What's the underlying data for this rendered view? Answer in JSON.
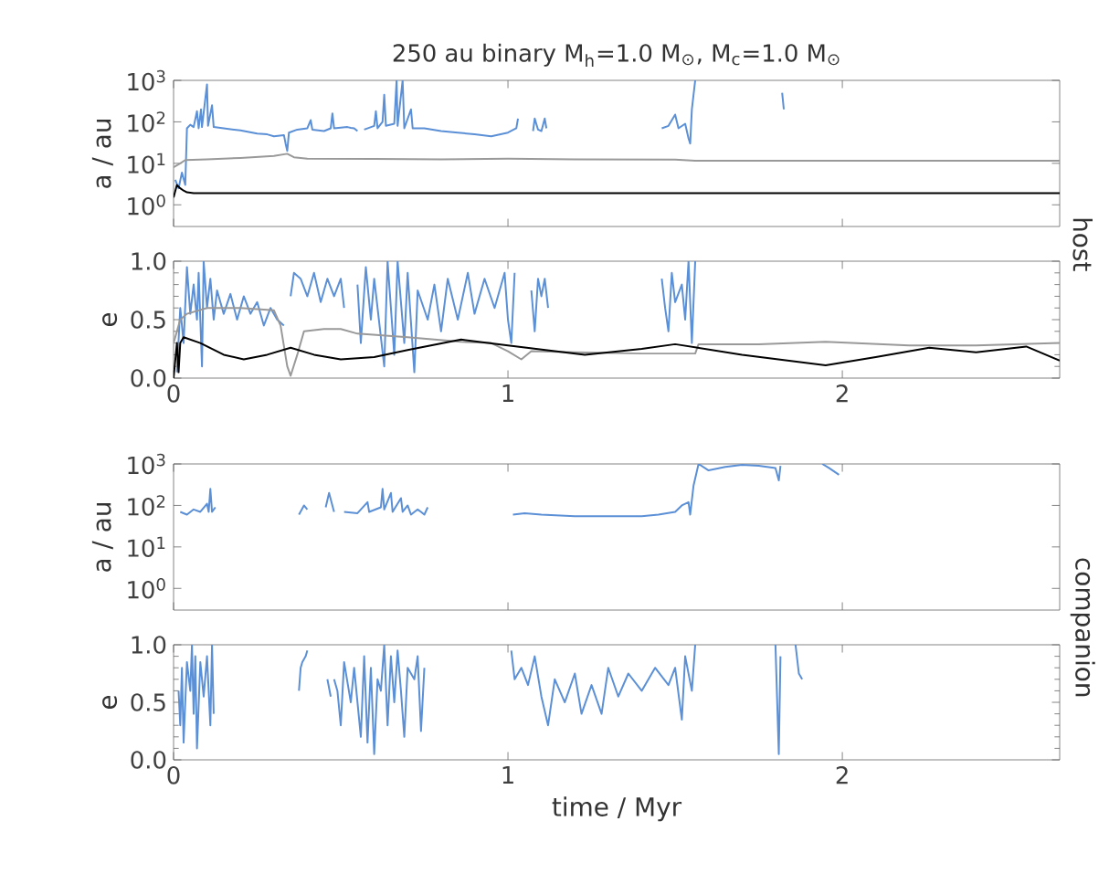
{
  "chart_data": [
    {
      "type": "line",
      "title": "250 au binary  M$_{h}$=1.0 M$_{⊙}$, M$_{c}$=1.0 M$_{⊙}$",
      "ylabel": "a / au",
      "annotations": [
        "host"
      ],
      "log": "y",
      "xlim": [
        0,
        2.65
      ],
      "xticks": [
        0,
        1,
        2
      ],
      "ylim": [
        0.3,
        1000
      ],
      "yticks": [
        {
          "value": 1,
          "label": "10$^{0}$"
        },
        {
          "value": 10,
          "label": "10$^{1}$"
        },
        {
          "value": 100,
          "label": "10$^{2}$"
        },
        {
          "value": 1000,
          "label": "10$^{3}$"
        }
      ],
      "tick_labels": "y",
      "series": [
        {
          "color": "#5b8fd6",
          "x": [
            0.005,
            0.015,
            0.025,
            0.035,
            0.04,
            0.05,
            0.06,
            0.07,
            0.075,
            0.082,
            0.085,
            0.1,
            0.103,
            0.115,
            0.12,
            0.15,
            0.2,
            0.25,
            0.28,
            0.3,
            0.33,
            0.335,
            0.34,
            0.345,
            0.37,
            0.4,
            0.41,
            0.415,
            0.45,
            0.47,
            0.475,
            0.48,
            0.52,
            0.53,
            0.54,
            0.55,
            0.56,
            0.57,
            0.6,
            0.605,
            0.61,
            0.625,
            0.63,
            0.635,
            0.66,
            0.667,
            0.67,
            0.685,
            0.69,
            0.71,
            0.715,
            0.75,
            0.8,
            0.85,
            0.9,
            0.95,
            1.0,
            1.025,
            1.03,
            1.035,
            1.075,
            1.08,
            1.09,
            1.1,
            1.11,
            1.115,
            1.12,
            1.46,
            1.48,
            1.5,
            1.51,
            1.53,
            1.54,
            1.545,
            1.55,
            1.56,
            1.565,
            1.82,
            1.825
          ],
          "values": [
            4,
            2.5,
            6,
            3,
            70,
            85,
            75,
            180,
            70,
            200,
            75,
            800,
            80,
            250,
            75,
            70,
            62,
            52,
            50,
            45,
            48,
            30,
            20,
            55,
            65,
            70,
            110,
            65,
            60,
            70,
            160,
            70,
            75,
            72,
            70,
            60,
            null,
            65,
            80,
            180,
            70,
            100,
            450,
            80,
            90,
            1000,
            80,
            1000,
            70,
            200,
            70,
            70,
            60,
            55,
            50,
            45,
            55,
            70,
            120,
            null,
            60,
            120,
            65,
            60,
            120,
            70,
            null,
            70,
            80,
            150,
            70,
            90,
            40,
            30,
            200,
            1000,
            null,
            500,
            200
          ]
        },
        {
          "color": "#999999",
          "x": [
            0,
            0.02,
            0.035,
            0.1,
            0.2,
            0.3,
            0.34,
            0.36,
            0.4,
            0.6,
            0.8,
            1.0,
            1.2,
            1.5,
            1.56,
            2.0,
            2.65
          ],
          "values": [
            8,
            10,
            12,
            12.5,
            13.5,
            15,
            17,
            14,
            13,
            12.8,
            12.5,
            13,
            12.5,
            12.3,
            11.5,
            11.5,
            11.5
          ]
        },
        {
          "color": "#000000",
          "x": [
            0,
            0.01,
            0.02,
            0.03,
            0.04,
            0.06,
            2.65
          ],
          "values": [
            1.5,
            3,
            2.5,
            2.2,
            2,
            1.9,
            1.9
          ]
        }
      ]
    },
    {
      "type": "line",
      "ylabel": "e",
      "xlim": [
        0,
        2.65
      ],
      "xticks": [
        0,
        1,
        2
      ],
      "ylim": [
        0,
        1
      ],
      "yticks": [
        {
          "value": 0,
          "label": "0.0"
        },
        {
          "value": 0.5,
          "label": "0.5"
        },
        {
          "value": 1,
          "label": "1.0"
        }
      ],
      "series": [
        {
          "color": "#5b8fd6",
          "x": [
            0.01,
            0.02,
            0.03,
            0.04,
            0.05,
            0.06,
            0.07,
            0.075,
            0.085,
            0.09,
            0.1,
            0.11,
            0.12,
            0.13,
            0.15,
            0.17,
            0.19,
            0.21,
            0.23,
            0.25,
            0.27,
            0.29,
            0.31,
            0.33,
            0.335,
            0.35,
            0.36,
            0.38,
            0.4,
            0.42,
            0.44,
            0.46,
            0.48,
            0.5,
            0.51,
            0.52,
            0.55,
            0.56,
            0.575,
            0.59,
            0.6,
            0.63,
            0.64,
            0.66,
            0.67,
            0.69,
            0.7,
            0.72,
            0.73,
            0.76,
            0.78,
            0.8,
            0.82,
            0.85,
            0.88,
            0.9,
            0.93,
            0.96,
            0.99,
            1.0,
            1.01,
            1.02,
            1.03,
            1.07,
            1.08,
            1.09,
            1.1,
            1.11,
            1.12,
            1.125,
            1.46,
            1.47,
            1.48,
            1.49,
            1.5,
            1.52,
            1.53,
            1.54,
            1.55,
            1.56
          ],
          "values": [
            0.05,
            0.6,
            0.3,
            0.95,
            0.55,
            0.8,
            0.5,
            0.9,
            0.1,
            1.0,
            0.6,
            0.85,
            0.5,
            0.75,
            0.55,
            0.72,
            0.5,
            0.7,
            0.55,
            0.65,
            0.45,
            0.6,
            0.5,
            0.45,
            null,
            0.7,
            0.9,
            0.85,
            0.7,
            0.9,
            0.65,
            0.85,
            0.7,
            0.85,
            0.6,
            null,
            0.8,
            0.3,
            0.95,
            0.5,
            0.85,
            0.1,
            1.0,
            0.2,
            1.0,
            0.3,
            0.9,
            0.05,
            0.75,
            0.5,
            0.8,
            0.4,
            0.85,
            0.5,
            0.9,
            0.55,
            0.85,
            0.6,
            0.9,
            0.5,
            0.3,
            0.9,
            null,
            0.75,
            0.4,
            0.85,
            0.7,
            0.85,
            0.6,
            null,
            0.85,
            0.6,
            0.4,
            0.9,
            0.65,
            0.8,
            0.5,
            1.0,
            0.3,
            1.0
          ]
        },
        {
          "color": "#999999",
          "x": [
            0,
            0.02,
            0.04,
            0.1,
            0.2,
            0.3,
            0.32,
            0.34,
            0.35,
            0.37,
            0.39,
            0.45,
            0.5,
            0.55,
            0.7,
            0.86,
            0.95,
            1.0,
            1.04,
            1.07,
            1.2,
            1.4,
            1.56,
            1.57,
            1.75,
            1.95,
            2.2,
            2.4,
            2.65
          ],
          "values": [
            0.3,
            0.5,
            0.55,
            0.6,
            0.6,
            0.58,
            0.45,
            0.1,
            0.02,
            0.2,
            0.4,
            0.42,
            0.42,
            0.38,
            0.35,
            0.31,
            0.3,
            0.23,
            0.16,
            0.23,
            0.22,
            0.21,
            0.21,
            0.29,
            0.29,
            0.31,
            0.28,
            0.28,
            0.3
          ]
        },
        {
          "color": "#000000",
          "x": [
            0,
            0.01,
            0.015,
            0.02,
            0.03,
            0.08,
            0.15,
            0.21,
            0.28,
            0.35,
            0.42,
            0.5,
            0.6,
            0.7,
            0.86,
            1.0,
            1.23,
            1.4,
            1.5,
            1.7,
            1.95,
            2.1,
            2.26,
            2.4,
            2.55,
            2.65
          ],
          "values": [
            0.0,
            0.3,
            0.05,
            0.3,
            0.35,
            0.3,
            0.2,
            0.16,
            0.2,
            0.26,
            0.2,
            0.16,
            0.18,
            0.24,
            0.33,
            0.28,
            0.2,
            0.25,
            0.29,
            0.2,
            0.11,
            0.18,
            0.26,
            0.22,
            0.27,
            0.15
          ]
        }
      ]
    },
    {
      "type": "line",
      "ylabel": "a / au",
      "annotations": [
        "companion"
      ],
      "log": "y",
      "xlim": [
        0,
        2.65
      ],
      "xticks": [
        0,
        1,
        2
      ],
      "ylim": [
        0.3,
        1000
      ],
      "yticks": [
        {
          "value": 1,
          "label": "10$^{0}$"
        },
        {
          "value": 10,
          "label": "10$^{1}$"
        },
        {
          "value": 100,
          "label": "10$^{2}$"
        },
        {
          "value": 1000,
          "label": "10$^{3}$"
        }
      ],
      "tick_labels": "y",
      "series": [
        {
          "color": "#5b8fd6",
          "x": [
            0.02,
            0.04,
            0.06,
            0.08,
            0.1,
            0.105,
            0.11,
            0.115,
            0.125,
            0.13,
            0.375,
            0.39,
            0.4,
            0.405,
            0.455,
            0.465,
            0.48,
            0.485,
            0.51,
            0.55,
            0.58,
            0.585,
            0.62,
            0.625,
            0.63,
            0.65,
            0.655,
            0.68,
            0.685,
            0.7,
            0.71,
            0.73,
            0.74,
            0.75,
            0.76,
            0.765,
            1.015,
            1.05,
            1.1,
            1.2,
            1.3,
            1.4,
            1.45,
            1.5,
            1.52,
            1.54,
            1.545,
            1.555,
            1.57,
            1.6,
            1.65,
            1.7,
            1.75,
            1.8,
            1.81,
            1.815
          ],
          "values": [
            70,
            60,
            80,
            70,
            110,
            70,
            250,
            70,
            90,
            null,
            60,
            100,
            80,
            null,
            90,
            200,
            70,
            null,
            70,
            65,
            120,
            70,
            90,
            250,
            80,
            200,
            70,
            150,
            70,
            100,
            60,
            80,
            70,
            60,
            90,
            null,
            60,
            65,
            60,
            55,
            55,
            55,
            60,
            70,
            100,
            120,
            60,
            300,
            1000,
            700,
            850,
            950,
            900,
            800,
            400,
            900
          ]
        },
        {
          "color": "#5b8fd6",
          "x": [
            1.94,
            1.96,
            1.99
          ],
          "values": [
            1000,
            800,
            550
          ]
        }
      ]
    },
    {
      "type": "line",
      "ylabel": "e",
      "xlabel": "time / Myr",
      "xlim": [
        0,
        2.65
      ],
      "xticks": [
        0,
        1,
        2
      ],
      "ylim": [
        0,
        1
      ],
      "yticks": [
        {
          "value": 0,
          "label": "0.0"
        },
        {
          "value": 0.5,
          "label": "0.5"
        },
        {
          "value": 1,
          "label": "1.0"
        }
      ],
      "series": [
        {
          "color": "#5b8fd6",
          "x": [
            0.015,
            0.02,
            0.025,
            0.03,
            0.04,
            0.05,
            0.055,
            0.06,
            0.065,
            0.07,
            0.08,
            0.09,
            0.1,
            0.11,
            0.115,
            0.12,
            0.125,
            0.375,
            0.38,
            0.385,
            0.395,
            0.4,
            0.405,
            0.46,
            0.47,
            0.475,
            0.48,
            0.49,
            0.5,
            0.51,
            0.53,
            0.54,
            0.56,
            0.57,
            0.58,
            0.59,
            0.6,
            0.61,
            0.62,
            0.63,
            0.64,
            0.65,
            0.66,
            0.67,
            0.68,
            0.69,
            0.7,
            0.72,
            0.73,
            0.74,
            0.75,
            0.755,
            1.01,
            1.02,
            1.04,
            1.06,
            1.08,
            1.1,
            1.12,
            1.14,
            1.17,
            1.2,
            1.22,
            1.25,
            1.28,
            1.3,
            1.33,
            1.36,
            1.4,
            1.44,
            1.48,
            1.5,
            1.52,
            1.53,
            1.55,
            1.56,
            1.565,
            1.8,
            1.81,
            1.815,
            1.82,
            1.86,
            1.87,
            1.88
          ],
          "values": [
            0.6,
            0.3,
            0.8,
            0.15,
            0.85,
            0.6,
            1.0,
            0.4,
            0.9,
            0.1,
            0.85,
            0.55,
            0.9,
            0.3,
            1.0,
            0.4,
            null,
            0.6,
            0.8,
            0.85,
            0.9,
            0.95,
            null,
            0.7,
            0.55,
            null,
            0.7,
            0.6,
            0.3,
            0.85,
            0.5,
            0.8,
            0.2,
            0.9,
            0.15,
            0.8,
            0.05,
            0.7,
            0.6,
            1.0,
            0.3,
            0.9,
            0.5,
            0.95,
            0.6,
            0.2,
            0.8,
            0.7,
            0.9,
            0.25,
            0.8,
            null,
            0.95,
            0.7,
            0.8,
            0.65,
            0.9,
            0.55,
            0.3,
            0.7,
            0.5,
            0.75,
            0.4,
            0.65,
            0.4,
            0.8,
            0.55,
            0.75,
            0.6,
            0.8,
            0.65,
            0.8,
            0.35,
            0.9,
            0.6,
            1.0,
            null,
            1.0,
            0.05,
            0.9,
            null,
            1.0,
            0.75,
            0.7
          ]
        }
      ]
    }
  ]
}
